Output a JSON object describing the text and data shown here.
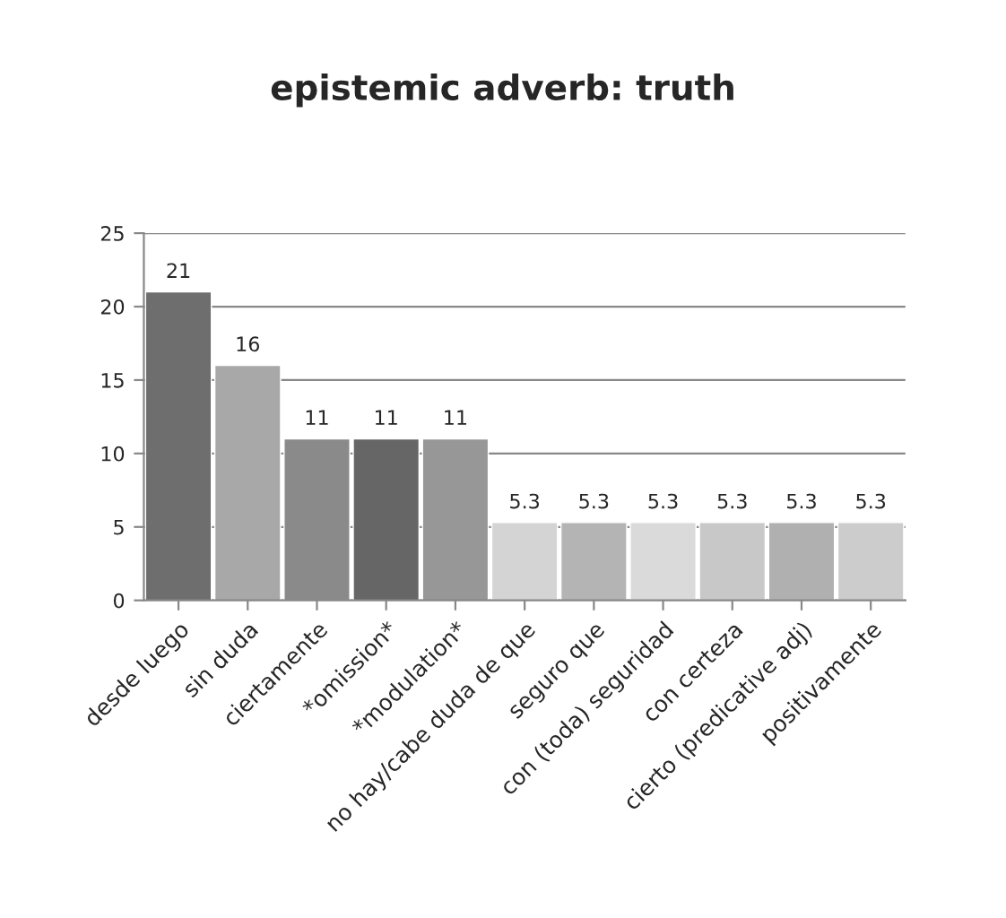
{
  "chart_data": {
    "type": "bar",
    "title": "epistemic adverb: truth",
    "categories": [
      "desde luego",
      "sin duda",
      "ciertamente",
      "*omission*",
      "*modulation*",
      "no hay/cabe duda de que",
      "seguro que",
      "con (toda) seguridad",
      "con certeza",
      "cierto (predicative adj)",
      "positivamente"
    ],
    "values": [
      21,
      16,
      11,
      11,
      11,
      5.3,
      5.3,
      5.3,
      5.3,
      5.3,
      5.3
    ],
    "colors": [
      "#6e6e6e",
      "#a8a8a8",
      "#8a8a8a",
      "#666666",
      "#979797",
      "#d4d4d4",
      "#b4b4b4",
      "#dadada",
      "#c8c8c8",
      "#b0b0b0",
      "#cccccc"
    ],
    "ylim": [
      0,
      25
    ],
    "yticks": [
      0,
      5,
      10,
      15,
      20,
      25
    ],
    "grid": "y",
    "data_labels": true
  }
}
